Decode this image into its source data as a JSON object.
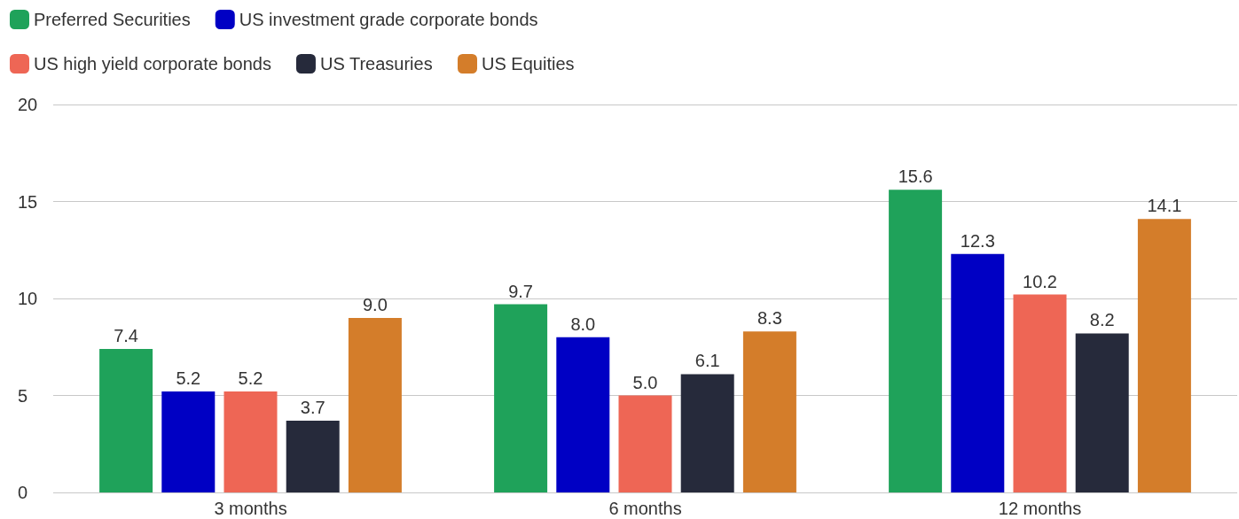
{
  "chart_data": {
    "type": "bar",
    "categories": [
      "3 months",
      "6 months",
      "12 months"
    ],
    "series": [
      {
        "name": "Preferred Securities",
        "color": "#1fa25a",
        "values": [
          7.4,
          9.7,
          15.6
        ],
        "value_labels": [
          "7.4",
          "9.7",
          "15.6"
        ]
      },
      {
        "name": "US investment grade corporate bonds",
        "color": "#0000c4",
        "values": [
          5.2,
          8.0,
          12.3
        ],
        "value_labels": [
          "5.2",
          "8.0",
          "12.3"
        ]
      },
      {
        "name": "US high yield corporate bonds",
        "color": "#ee6655",
        "values": [
          5.2,
          5.0,
          10.2
        ],
        "value_labels": [
          "5.2",
          "5.0",
          "10.2"
        ]
      },
      {
        "name": "US Treasuries",
        "color": "#262a3b",
        "values": [
          3.7,
          6.1,
          8.2
        ],
        "value_labels": [
          "3.7",
          "6.1",
          "8.2"
        ]
      },
      {
        "name": "US Equities",
        "color": "#d47d2a",
        "values": [
          9.0,
          8.3,
          14.1
        ],
        "value_labels": [
          "9.0",
          "8.3",
          "14.1"
        ]
      }
    ],
    "ylim": [
      0,
      20
    ],
    "yticks": [
      0,
      5,
      10,
      15,
      20
    ],
    "grid": "y",
    "legend": "top left"
  }
}
